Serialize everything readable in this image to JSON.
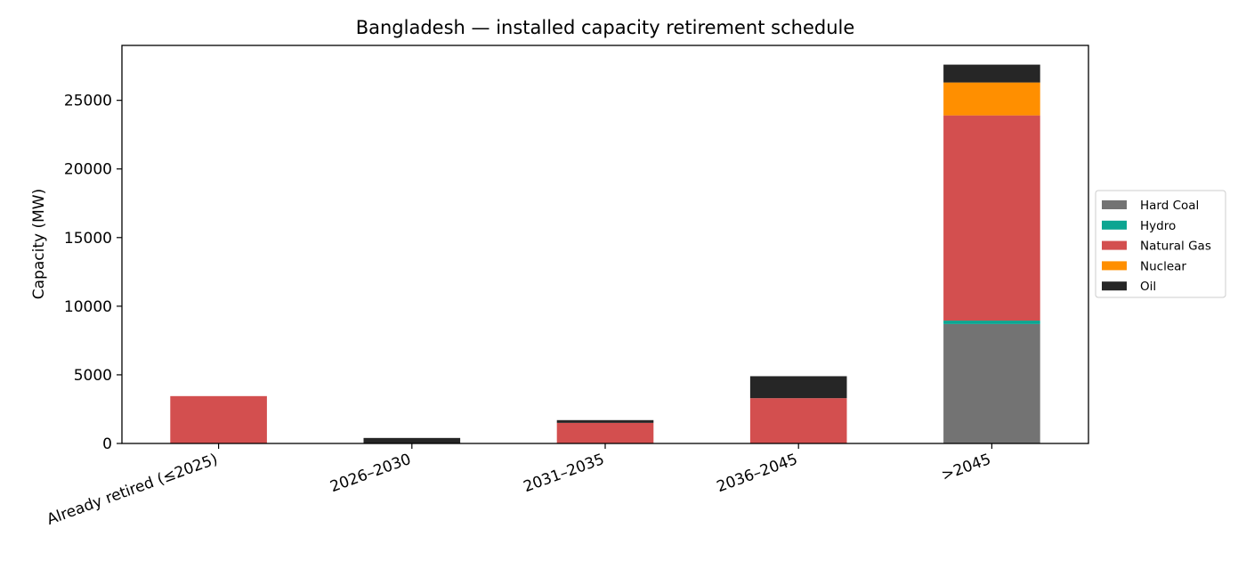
{
  "chart_data": {
    "type": "bar",
    "stacked": true,
    "title": "Bangladesh — installed capacity retirement schedule",
    "xlabel": "",
    "ylabel": "Capacity (MW)",
    "ylim": [
      0,
      29000
    ],
    "yticks": [
      0,
      5000,
      10000,
      15000,
      20000,
      25000
    ],
    "grid": false,
    "legend_position": "right",
    "categories": [
      "Already retired (≤2025)",
      "2026–2030",
      "2031–2035",
      "2036–2045",
      ">2045"
    ],
    "series": [
      {
        "name": "Hard Coal",
        "color": "#737373",
        "values": [
          0,
          0,
          0,
          0,
          8700
        ]
      },
      {
        "name": "Hydro",
        "color": "#0ca591",
        "values": [
          0,
          0,
          0,
          0,
          250
        ]
      },
      {
        "name": "Natural Gas",
        "color": "#d34f4f",
        "values": [
          3450,
          0,
          1500,
          3300,
          14950
        ]
      },
      {
        "name": "Nuclear",
        "color": "#ff8f00",
        "values": [
          0,
          0,
          0,
          0,
          2400
        ]
      },
      {
        "name": "Oil",
        "color": "#262626",
        "values": [
          0,
          400,
          200,
          1600,
          1300
        ]
      }
    ]
  }
}
